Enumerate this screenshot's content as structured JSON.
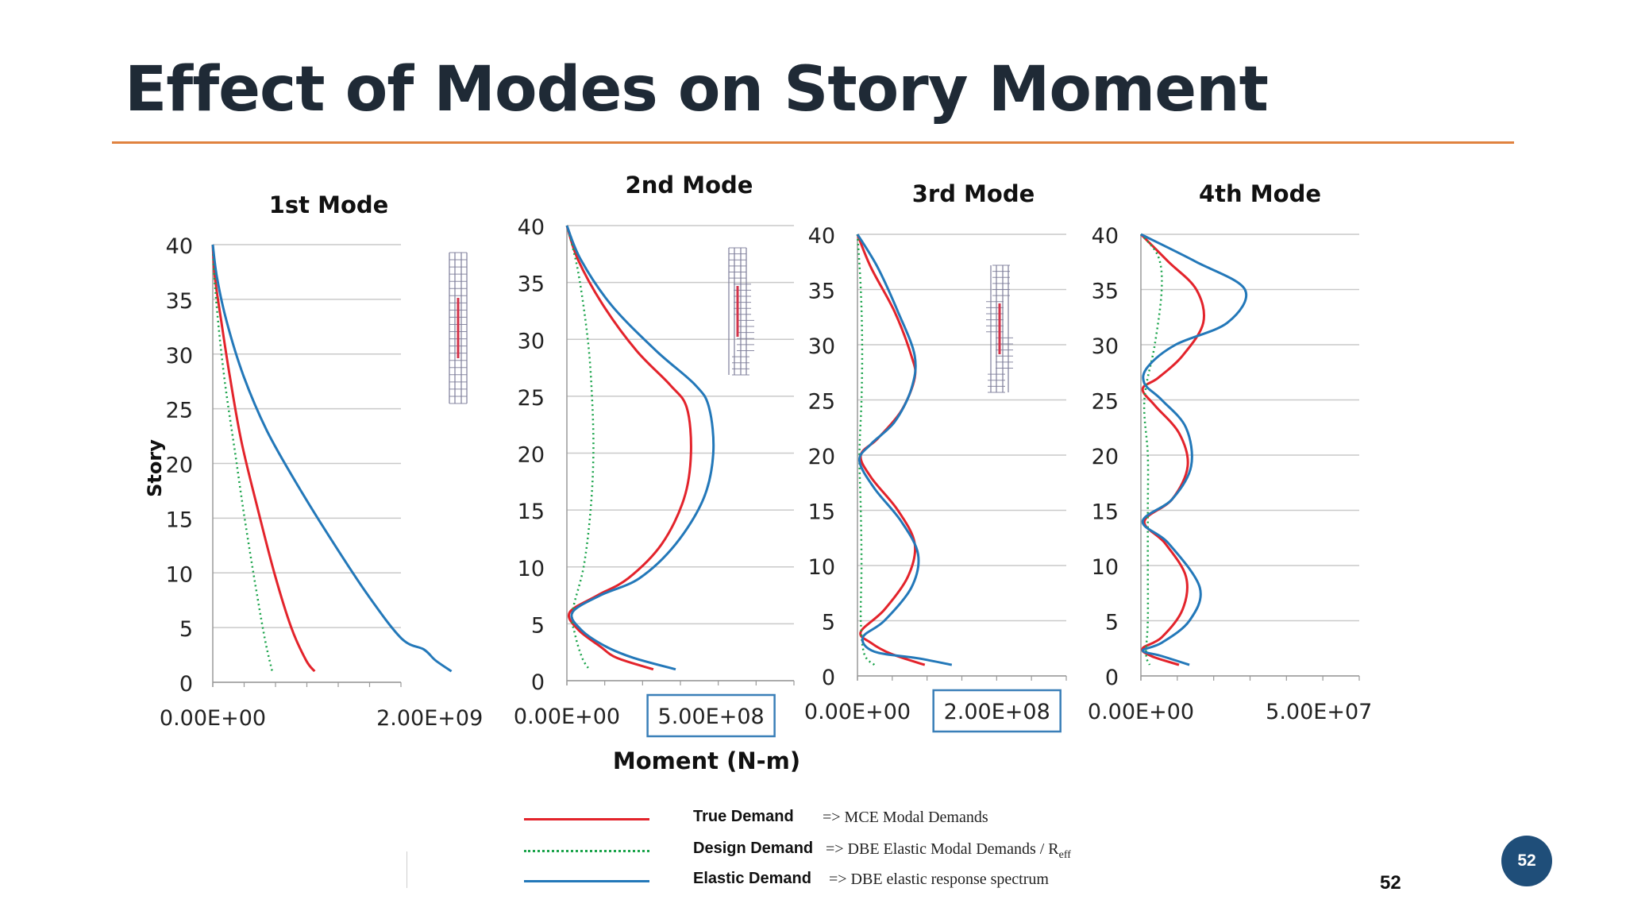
{
  "slide": {
    "title": "Effect of Modes on Story Moment",
    "page_number": "52",
    "badge_number": "52"
  },
  "colors": {
    "true_demand": "#e3232b",
    "design_demand": "#1aa34a",
    "elastic_demand": "#2378b9",
    "title_rule": "#e0823f",
    "badge": "#1f4e79"
  },
  "legend": [
    {
      "key": "true_demand",
      "name": "True Demand",
      "desc": "=> MCE Modal Demands",
      "line_style": "solid"
    },
    {
      "key": "design_demand",
      "name": "Design Demand",
      "desc": "=> DBE Elastic Modal Demands / R",
      "desc_sub": "eff",
      "line_style": "dotted"
    },
    {
      "key": "elastic_demand",
      "name": "Elastic Demand",
      "desc": "=> DBE elastic response spectrum",
      "line_style": "solid"
    }
  ],
  "chart_data": [
    {
      "type": "line",
      "title": "1st Mode",
      "ylabel": "Story",
      "xlabel": "",
      "ylim": [
        0,
        40
      ],
      "yticks": [
        "0",
        "5",
        "10",
        "15",
        "20",
        "25",
        "30",
        "35",
        "40"
      ],
      "xticks": [
        "0.00E+00",
        "2.00E+09"
      ],
      "xtick_values": [
        0,
        2000000000
      ],
      "xlim": [
        0,
        2500000000
      ],
      "grid": true,
      "series": [
        {
          "key": "true_demand",
          "points": [
            [
              0,
              40
            ],
            [
              20000000,
              37
            ],
            [
              80000000,
              33
            ],
            [
              160000000,
              28
            ],
            [
              270000000,
              22
            ],
            [
              420000000,
              16
            ],
            [
              580000000,
              10
            ],
            [
              740000000,
              5
            ],
            [
              880000000,
              2
            ],
            [
              960000000,
              1
            ]
          ]
        },
        {
          "key": "design_demand",
          "points": [
            [
              0,
              40
            ],
            [
              15000000,
              37
            ],
            [
              60000000,
              32
            ],
            [
              120000000,
              27
            ],
            [
              210000000,
              21
            ],
            [
              300000000,
              15
            ],
            [
              400000000,
              9
            ],
            [
              490000000,
              4
            ],
            [
              560000000,
              1
            ]
          ]
        },
        {
          "key": "elastic_demand",
          "points": [
            [
              0,
              40
            ],
            [
              40000000,
              37
            ],
            [
              130000000,
              33
            ],
            [
              290000000,
              28
            ],
            [
              510000000,
              23
            ],
            [
              800000000,
              18
            ],
            [
              1120000000,
              13
            ],
            [
              1460000000,
              8
            ],
            [
              1780000000,
              4
            ],
            [
              1990000000,
              3
            ],
            [
              2100000000,
              2
            ],
            [
              2250000000,
              1
            ]
          ]
        }
      ]
    },
    {
      "type": "line",
      "title": "2nd Mode",
      "ylabel": "",
      "xlabel": "Moment (N-m)",
      "ylim": [
        0,
        40
      ],
      "yticks": [
        "0",
        "5",
        "10",
        "15",
        "20",
        "25",
        "30",
        "35",
        "40"
      ],
      "xticks": [
        "0.00E+00",
        "5.00E+08"
      ],
      "xtick_values": [
        0,
        500000000
      ],
      "xtick_boxed": [
        false,
        true
      ],
      "xlim": [
        0,
        820000000
      ],
      "grid": true,
      "series": [
        {
          "key": "true_demand",
          "points": [
            [
              0,
              40
            ],
            [
              40000000,
              37
            ],
            [
              130000000,
              33
            ],
            [
              250000000,
              29
            ],
            [
              370000000,
              26
            ],
            [
              430000000,
              24
            ],
            [
              445000000,
              20
            ],
            [
              420000000,
              16
            ],
            [
              340000000,
              12
            ],
            [
              220000000,
              9
            ],
            [
              110000000,
              7.5
            ],
            [
              10000000,
              6
            ],
            [
              40000000,
              4.5
            ],
            [
              120000000,
              3
            ],
            [
              180000000,
              2
            ],
            [
              310000000,
              1
            ]
          ]
        },
        {
          "key": "design_demand",
          "points": [
            [
              0,
              40
            ],
            [
              40000000,
              36
            ],
            [
              75000000,
              30
            ],
            [
              90000000,
              25
            ],
            [
              95000000,
              20
            ],
            [
              85000000,
              15
            ],
            [
              60000000,
              10
            ],
            [
              20000000,
              6
            ],
            [
              30000000,
              4
            ],
            [
              55000000,
              2
            ],
            [
              80000000,
              1
            ]
          ]
        },
        {
          "key": "elastic_demand",
          "points": [
            [
              0,
              40
            ],
            [
              50000000,
              37
            ],
            [
              160000000,
              33
            ],
            [
              320000000,
              29
            ],
            [
              460000000,
              26
            ],
            [
              510000000,
              24
            ],
            [
              525000000,
              20
            ],
            [
              490000000,
              16
            ],
            [
              390000000,
              12
            ],
            [
              260000000,
              9
            ],
            [
              120000000,
              7.5
            ],
            [
              20000000,
              6
            ],
            [
              50000000,
              4.5
            ],
            [
              140000000,
              3
            ],
            [
              240000000,
              2
            ],
            [
              390000000,
              1
            ]
          ]
        }
      ]
    },
    {
      "type": "line",
      "title": "3rd Mode",
      "ylabel": "",
      "xlabel": "",
      "ylim": [
        0,
        40
      ],
      "yticks": [
        "0",
        "5",
        "10",
        "15",
        "20",
        "25",
        "30",
        "35",
        "40"
      ],
      "xticks": [
        "0.00E+00",
        "2.00E+08"
      ],
      "xtick_values": [
        0,
        200000000
      ],
      "xtick_boxed": [
        false,
        true
      ],
      "xlim": [
        0,
        310000000
      ],
      "grid": true,
      "series": [
        {
          "key": "true_demand",
          "points": [
            [
              0,
              40
            ],
            [
              20000000,
              37
            ],
            [
              55000000,
              33
            ],
            [
              80000000,
              29
            ],
            [
              85000000,
              27
            ],
            [
              65000000,
              24
            ],
            [
              30000000,
              21.5
            ],
            [
              5000000,
              20
            ],
            [
              20000000,
              18
            ],
            [
              60000000,
              15
            ],
            [
              85000000,
              12
            ],
            [
              75000000,
              9
            ],
            [
              40000000,
              6
            ],
            [
              5000000,
              4
            ],
            [
              20000000,
              3
            ],
            [
              50000000,
              2
            ],
            [
              100000000,
              1
            ]
          ]
        },
        {
          "key": "design_demand",
          "points": [
            [
              0,
              40
            ],
            [
              5000000,
              35
            ],
            [
              7000000,
              30
            ],
            [
              6000000,
              25
            ],
            [
              3000000,
              20
            ],
            [
              5000000,
              15
            ],
            [
              6000000,
              10
            ],
            [
              5000000,
              5
            ],
            [
              10000000,
              2
            ],
            [
              25000000,
              1
            ]
          ]
        },
        {
          "key": "elastic_demand",
          "points": [
            [
              0,
              40
            ],
            [
              30000000,
              37
            ],
            [
              60000000,
              33
            ],
            [
              85000000,
              29
            ],
            [
              80000000,
              26
            ],
            [
              55000000,
              23
            ],
            [
              20000000,
              21
            ],
            [
              3000000,
              19.5
            ],
            [
              25000000,
              17
            ],
            [
              65000000,
              14
            ],
            [
              90000000,
              11
            ],
            [
              80000000,
              8
            ],
            [
              40000000,
              5
            ],
            [
              8000000,
              3.5
            ],
            [
              25000000,
              2.2
            ],
            [
              90000000,
              1.6
            ],
            [
              140000000,
              1
            ]
          ]
        }
      ]
    },
    {
      "type": "line",
      "title": "4th Mode",
      "ylabel": "",
      "xlabel": "",
      "ylim": [
        0,
        40
      ],
      "yticks": [
        "0",
        "5",
        "10",
        "15",
        "20",
        "25",
        "30",
        "35",
        "40"
      ],
      "xticks": [
        "0.00E+00",
        "5.00E+07"
      ],
      "xtick_values": [
        0,
        50000000
      ],
      "xlim": [
        0,
        63000000
      ],
      "grid": true,
      "series": [
        {
          "key": "true_demand",
          "points": [
            [
              0,
              40
            ],
            [
              8000000,
              37.5
            ],
            [
              16000000,
              35
            ],
            [
              18000000,
              32
            ],
            [
              12000000,
              29
            ],
            [
              5000000,
              27
            ],
            [
              500000,
              26
            ],
            [
              4000000,
              24.5
            ],
            [
              11000000,
              22
            ],
            [
              13500000,
              19
            ],
            [
              9000000,
              16
            ],
            [
              1000000,
              14
            ],
            [
              7000000,
              12
            ],
            [
              13000000,
              9
            ],
            [
              12000000,
              6
            ],
            [
              6000000,
              3.5
            ],
            [
              500000,
              2.5
            ],
            [
              3000000,
              1.8
            ],
            [
              11000000,
              1
            ]
          ]
        },
        {
          "key": "design_demand",
          "points": [
            [
              0,
              40
            ],
            [
              5000000,
              38
            ],
            [
              6000000,
              35
            ],
            [
              4000000,
              30
            ],
            [
              1000000,
              25
            ],
            [
              2000000,
              20
            ],
            [
              2000000,
              15
            ],
            [
              2000000,
              10
            ],
            [
              2000000,
              5
            ],
            [
              1500000,
              2
            ],
            [
              2500000,
              1
            ]
          ]
        },
        {
          "key": "elastic_demand",
          "points": [
            [
              0,
              40
            ],
            [
              16000000,
              37.5
            ],
            [
              30000000,
              35
            ],
            [
              25000000,
              32
            ],
            [
              10000000,
              30
            ],
            [
              2000000,
              28
            ],
            [
              1000000,
              26.5
            ],
            [
              6000000,
              25
            ],
            [
              13000000,
              22.5
            ],
            [
              14500000,
              19
            ],
            [
              9000000,
              16
            ],
            [
              500000,
              14
            ],
            [
              8000000,
              12
            ],
            [
              17000000,
              8
            ],
            [
              14000000,
              5
            ],
            [
              6000000,
              3
            ],
            [
              500000,
              2.3
            ],
            [
              6000000,
              1.8
            ],
            [
              14000000,
              1
            ]
          ]
        }
      ]
    }
  ]
}
